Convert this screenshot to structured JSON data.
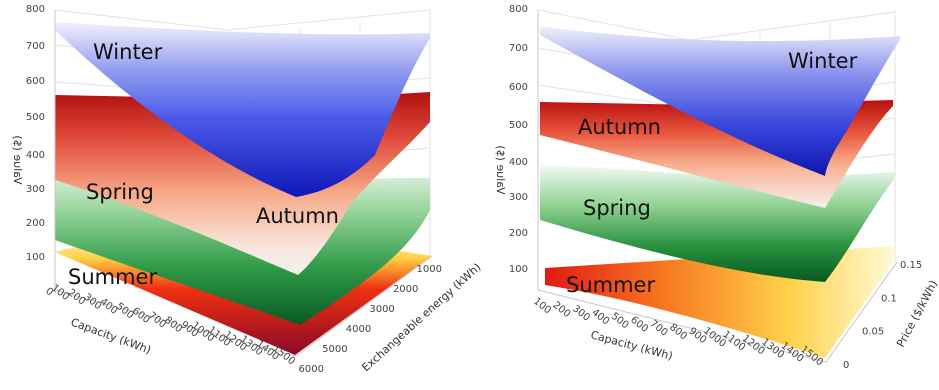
{
  "chart_data": [
    {
      "type": "surface-3d",
      "zlabel": "Value ($)",
      "z_ticks": [
        "800",
        "700",
        "600",
        "500",
        "400",
        "300",
        "200",
        "100"
      ],
      "xlabel": "Capacity (kWh)",
      "x_ticks": [
        "0",
        "100",
        "200",
        "300",
        "400",
        "500",
        "600",
        "700",
        "800",
        "900",
        "1000",
        "1100",
        "1200",
        "1300",
        "1400",
        "1500"
      ],
      "ylabel": "Exchangeable energy (kWh)",
      "y_ticks": [
        "1000",
        "2000",
        "3000",
        "4000",
        "5000",
        "6000"
      ],
      "series": [
        {
          "name": "Winter",
          "color": "#1a2ad0",
          "approx_value_range": [
            280,
            760
          ]
        },
        {
          "name": "Autumn",
          "color": "#c01818",
          "approx_value_range": [
            40,
            560
          ]
        },
        {
          "name": "Spring",
          "color": "#1d8a3a",
          "approx_value_range": [
            20,
            320
          ]
        },
        {
          "name": "Summer",
          "color": "#b0102a",
          "approx_value_range": [
            0,
            130
          ]
        }
      ]
    },
    {
      "type": "surface-3d",
      "zlabel": "Value ($)",
      "z_ticks": [
        "800",
        "700",
        "600",
        "500",
        "400",
        "300",
        "200",
        "100"
      ],
      "xlabel": "Capacity (kWh)",
      "x_ticks": [
        "100",
        "200",
        "300",
        "400",
        "500",
        "600",
        "700",
        "800",
        "900",
        "1000",
        "1100",
        "1200",
        "1300",
        "1400",
        "1500"
      ],
      "ylabel": "Price ($/kWh)",
      "y_ticks": [
        "0",
        "0.05",
        "0.1",
        "0.15"
      ],
      "series": [
        {
          "name": "Winter",
          "color": "#1a2ad0",
          "approx_value_range": [
            290,
            760
          ]
        },
        {
          "name": "Autumn",
          "color": "#c01818",
          "approx_value_range": [
            40,
            560
          ]
        },
        {
          "name": "Spring",
          "color": "#1d8a3a",
          "approx_value_range": [
            20,
            320
          ]
        },
        {
          "name": "Summer",
          "color": "#c01818",
          "approx_value_range": [
            0,
            130
          ]
        }
      ]
    }
  ]
}
